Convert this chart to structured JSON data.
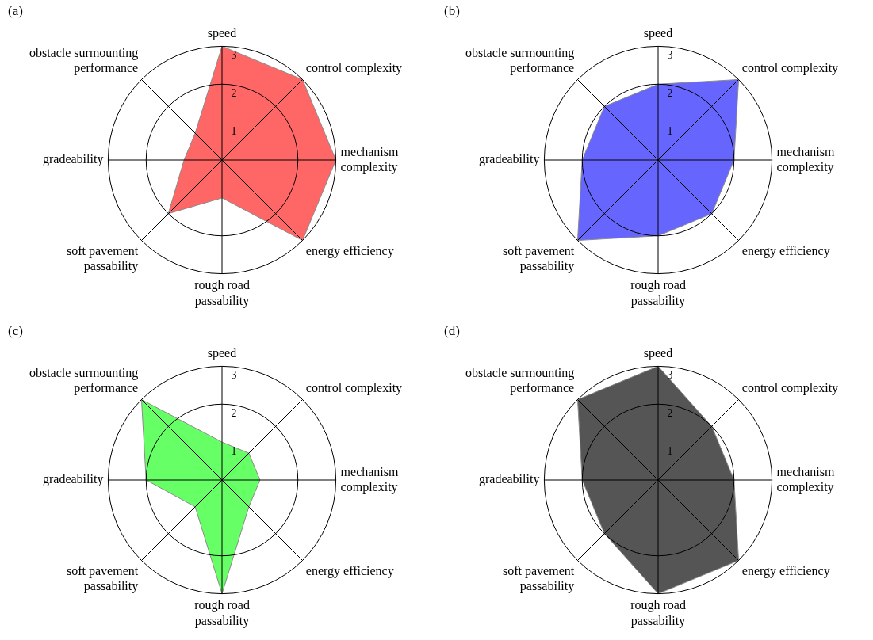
{
  "chart_data": [
    {
      "type": "radar",
      "title": "(a)",
      "categories": [
        "speed",
        "control complexity",
        "mechanism complexity",
        "energy efficiency",
        "rough road passability",
        "soft pavement passability",
        "gradeability",
        "obstacle surmounting performance"
      ],
      "series": [
        {
          "color": "#ff6666",
          "values": [
            3,
            3,
            3,
            3,
            1,
            2,
            1,
            1
          ]
        }
      ],
      "ylim": [
        0,
        3
      ],
      "yticks": [
        1,
        2,
        3
      ],
      "grid": true,
      "legend": false,
      "marker": "none"
    },
    {
      "type": "radar",
      "title": "(b)",
      "categories": [
        "speed",
        "control complexity",
        "mechanism complexity",
        "energy efficiency",
        "rough road passability",
        "soft pavement passability",
        "gradeability",
        "obstacle surmounting performance"
      ],
      "series": [
        {
          "color": "#6666ff",
          "values": [
            2,
            3,
            2,
            2,
            2,
            3,
            2,
            2
          ]
        }
      ],
      "ylim": [
        0,
        3
      ],
      "yticks": [
        1,
        2,
        3
      ],
      "grid": true,
      "legend": false,
      "marker": "none"
    },
    {
      "type": "radar",
      "title": "(c)",
      "categories": [
        "speed",
        "control complexity",
        "mechanism complexity",
        "energy efficiency",
        "rough road passability",
        "soft pavement passability",
        "gradeability",
        "obstacle surmounting performance"
      ],
      "series": [
        {
          "color": "#66ff66",
          "values": [
            1,
            1,
            1,
            1,
            3,
            1,
            2,
            3
          ]
        }
      ],
      "ylim": [
        0,
        3
      ],
      "yticks": [
        1,
        2,
        3
      ],
      "grid": true,
      "legend": false,
      "marker": "none"
    },
    {
      "type": "radar",
      "title": "(d)",
      "categories": [
        "speed",
        "control complexity",
        "mechanism complexity",
        "energy efficiency",
        "rough road passability",
        "soft pavement passability",
        "gradeability",
        "obstacle surmounting performance"
      ],
      "series": [
        {
          "color": "#555555",
          "values": [
            3,
            2,
            2,
            3,
            3,
            2,
            2,
            3
          ]
        }
      ],
      "ylim": [
        0,
        3
      ],
      "yticks": [
        1,
        2,
        3
      ],
      "grid": true,
      "legend": false,
      "marker": "none"
    }
  ]
}
